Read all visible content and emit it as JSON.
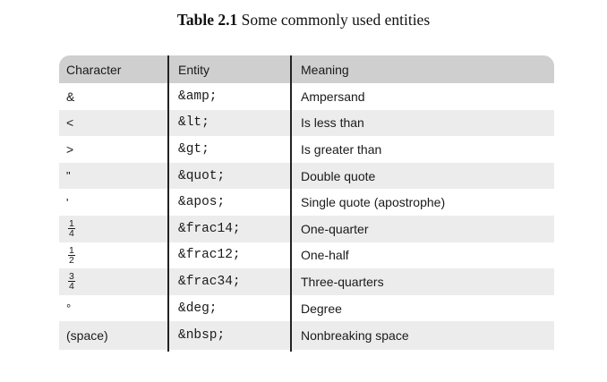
{
  "caption": {
    "label": "Table 2.1",
    "text": " Some commonly used entities"
  },
  "table": {
    "headers": [
      "Character",
      "Entity",
      "Meaning"
    ],
    "rows": [
      {
        "character": "&",
        "entity": "&amp;",
        "meaning": "Ampersand"
      },
      {
        "character": "<",
        "entity": "&lt;",
        "meaning": "Is less than"
      },
      {
        "character": ">",
        "entity": "&gt;",
        "meaning": "Is greater than"
      },
      {
        "character": "\"",
        "entity": "&quot;",
        "meaning": "Double quote"
      },
      {
        "character": "'",
        "entity": "&apos;",
        "meaning": "Single quote (apostrophe)"
      },
      {
        "character_num": "1",
        "character_den": "4",
        "entity": "&frac14;",
        "meaning": "One-quarter"
      },
      {
        "character_num": "1",
        "character_den": "2",
        "entity": "&frac12;",
        "meaning": "One-half"
      },
      {
        "character_num": "3",
        "character_den": "4",
        "entity": "&frac34;",
        "meaning": "Three-quarters"
      },
      {
        "character": "°",
        "entity": "&deg;",
        "meaning": "Degree"
      },
      {
        "character": "(space)",
        "entity": "&nbsp;",
        "meaning": "Nonbreaking space"
      }
    ]
  }
}
